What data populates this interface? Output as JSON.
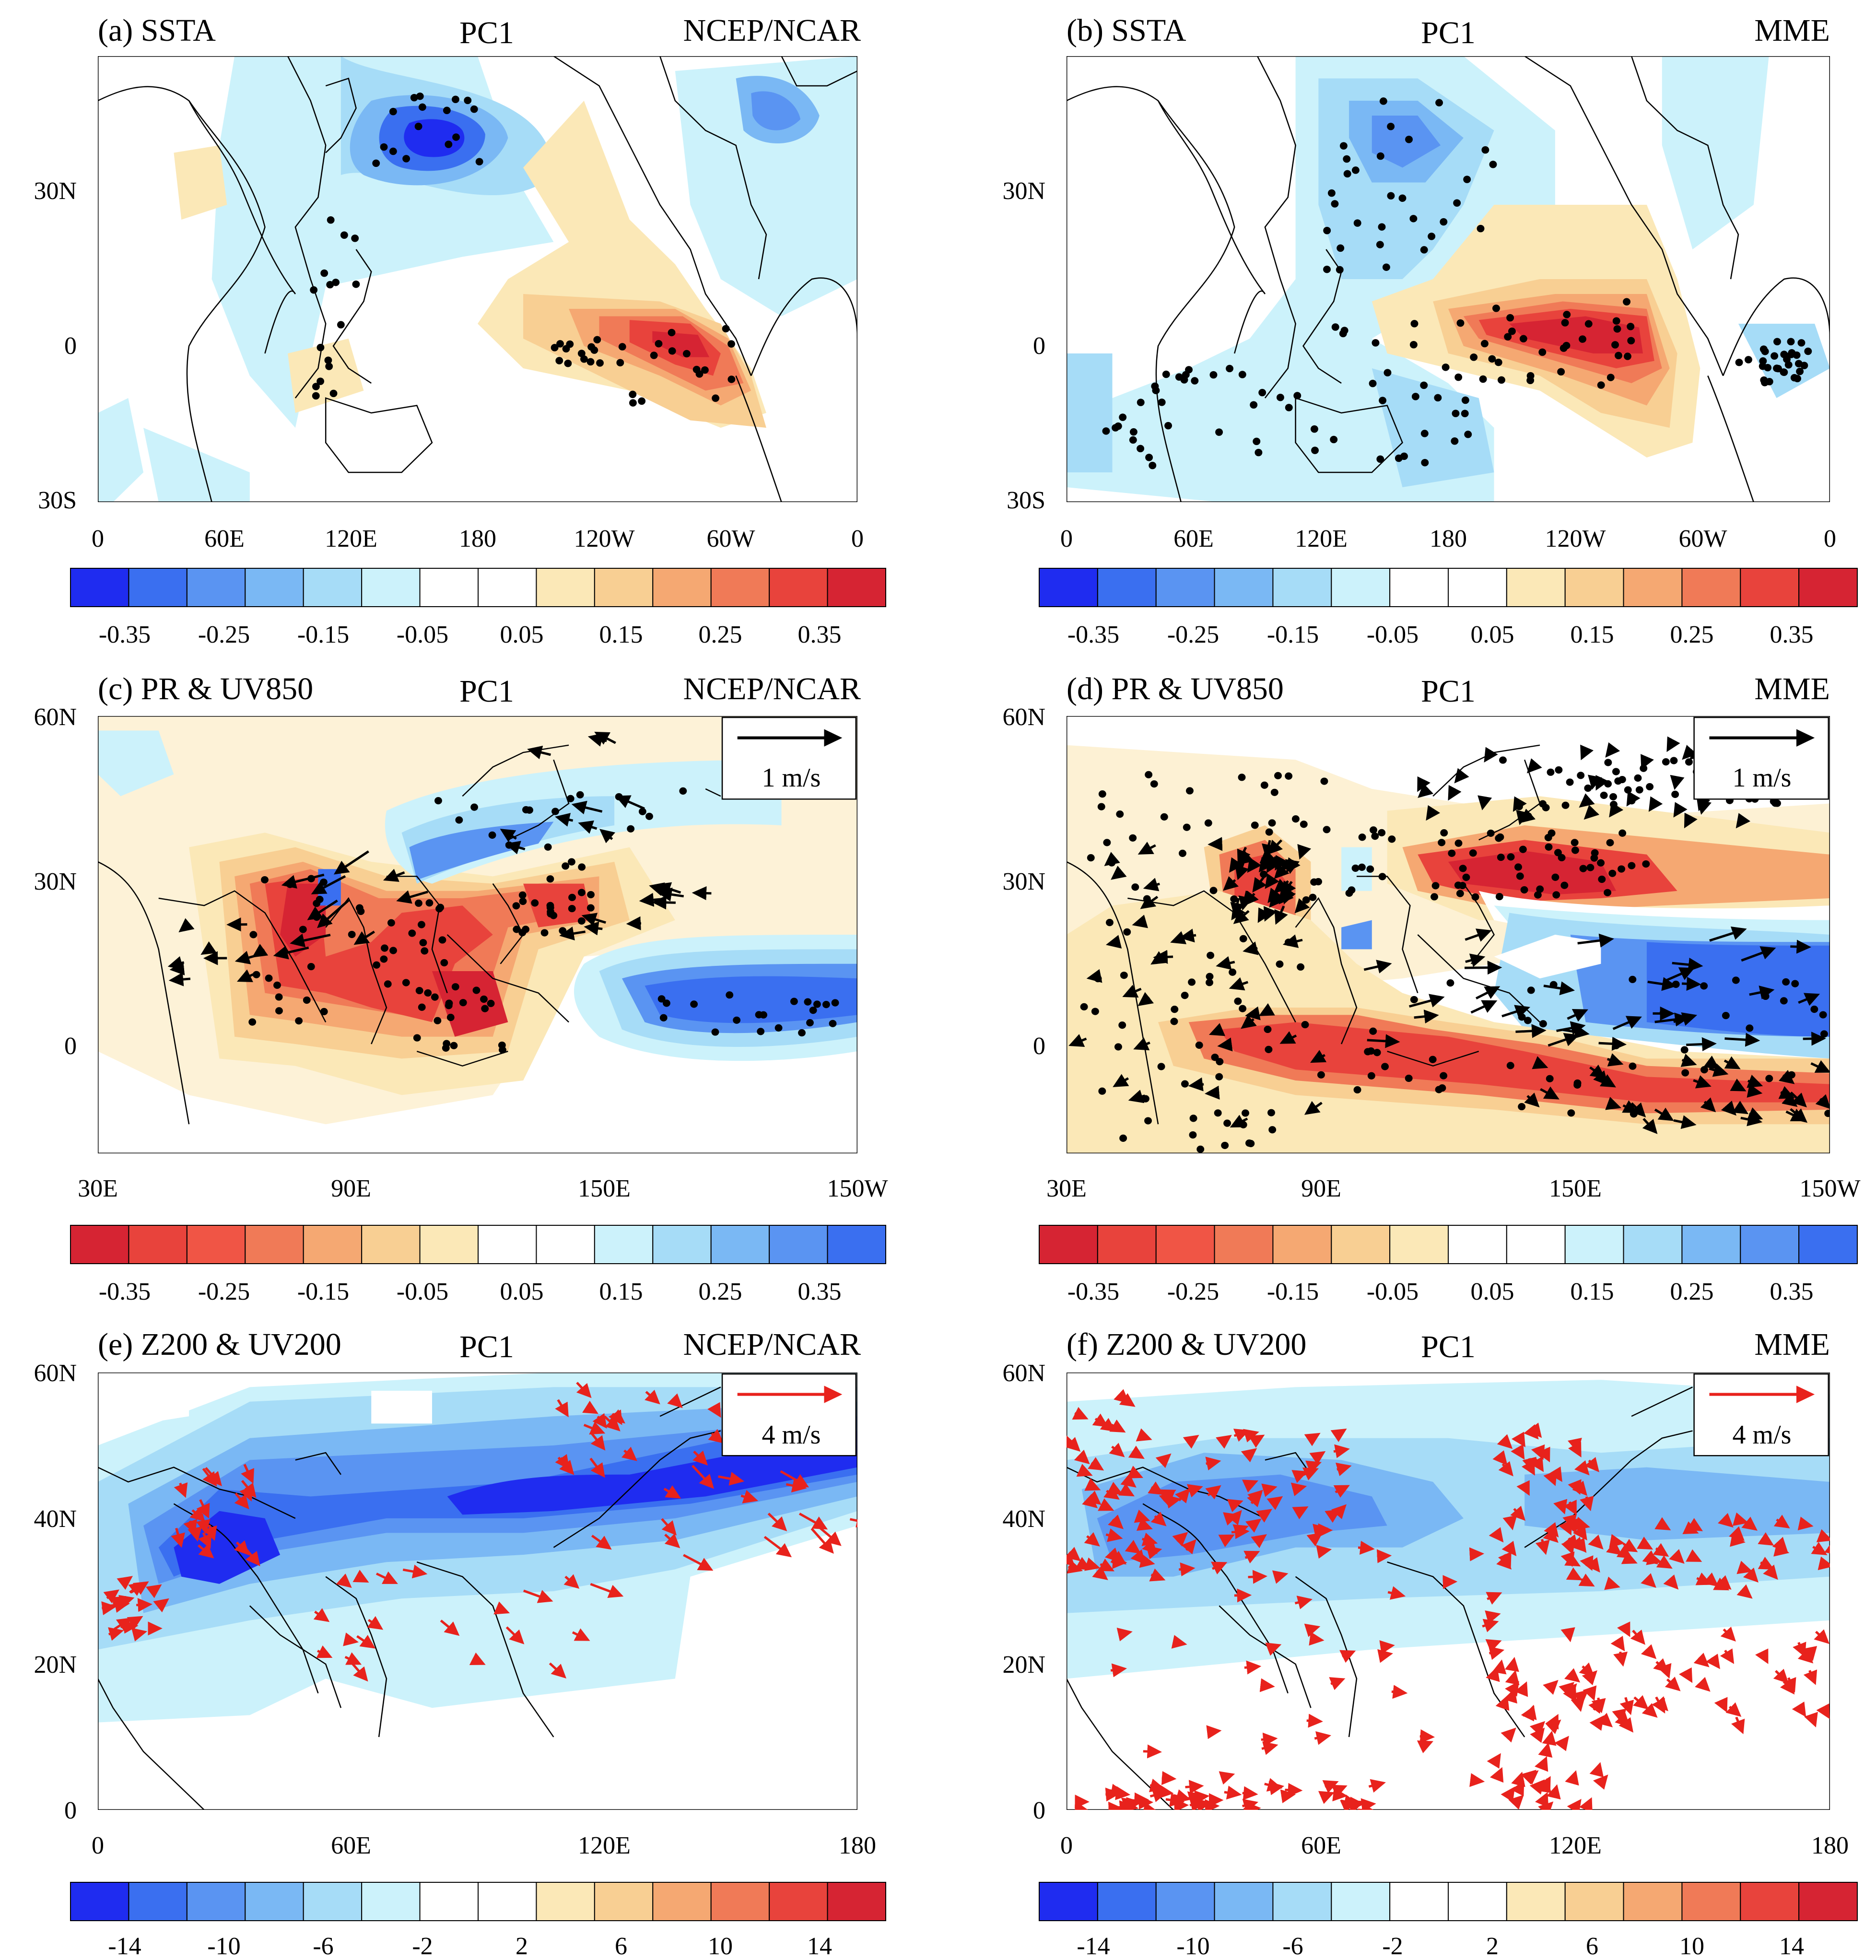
{
  "figure": {
    "panels": [
      {
        "id": "a",
        "label": "(a) SSTA",
        "center": "PC1",
        "source": "NCEP/NCAR",
        "x_ticks": [
          "0",
          "60E",
          "120E",
          "180",
          "120W",
          "60W",
          "0"
        ],
        "y_ticks": [
          "30N",
          "0",
          "30S"
        ],
        "colorbar": "cb_sst_redpos",
        "stipple_count": 62,
        "vectors": "none"
      },
      {
        "id": "b",
        "label": "(b) SSTA",
        "center": "PC1",
        "source": "MME",
        "x_ticks": [
          "0",
          "60E",
          "120E",
          "180",
          "120W",
          "60W",
          "0"
        ],
        "y_ticks": [
          "30N",
          "0",
          "30S"
        ],
        "colorbar": "cb_sst_redpos",
        "stipple_count": 150,
        "vectors": "none"
      },
      {
        "id": "c",
        "label": "(c) PR & UV850",
        "center": "PC1",
        "source": "NCEP/NCAR",
        "x_ticks": [
          "30E",
          "90E",
          "150E",
          "150W"
        ],
        "y_ticks": [
          "60N",
          "30N",
          "0"
        ],
        "colorbar": "cb_pr_redneg",
        "stipple_count": 120,
        "vectors": "black",
        "ref_vector_label": "1 m/s"
      },
      {
        "id": "d",
        "label": "(d) PR & UV850",
        "center": "PC1",
        "source": "MME",
        "x_ticks": [
          "30E",
          "90E",
          "150E",
          "150W"
        ],
        "y_ticks": [
          "60N",
          "30N",
          "0"
        ],
        "colorbar": "cb_pr_redneg",
        "stipple_count": 240,
        "vectors": "black",
        "ref_vector_label": "1 m/s"
      },
      {
        "id": "e",
        "label": "(e) Z200 & UV200",
        "center": "PC1",
        "source": "NCEP/NCAR",
        "x_ticks": [
          "0",
          "60E",
          "120E",
          "180"
        ],
        "y_ticks": [
          "60N",
          "40N",
          "20N",
          "0"
        ],
        "colorbar": "cb_z_bluenegs",
        "stipple_count": 0,
        "vectors": "red",
        "ref_vector_label": "4 m/s"
      },
      {
        "id": "f",
        "label": "(f) Z200 & UV200",
        "center": "PC1",
        "source": "MME",
        "x_ticks": [
          "0",
          "60E",
          "120E",
          "180"
        ],
        "y_ticks": [
          "60N",
          "40N",
          "20N",
          "0"
        ],
        "colorbar": "cb_z_bluenegs",
        "stipple_count": 0,
        "vectors": "red",
        "ref_vector_label": "4 m/s"
      }
    ],
    "colorbars": {
      "cb_sst_redpos": {
        "labels": [
          "-0.35",
          "-0.25",
          "-0.15",
          "-0.05",
          "0.05",
          "0.15",
          "0.25",
          "0.35"
        ],
        "colors": [
          "#1f2cf0",
          "#3a6ff0",
          "#5a94f2",
          "#7ab8f4",
          "#a6dcf7",
          "#ccf2fb",
          "#ffffff",
          "#ffffff",
          "#fbe8b7",
          "#f8cf93",
          "#f5a872",
          "#f07a57",
          "#e8433c",
          "#d62433"
        ]
      },
      "cb_pr_redneg": {
        "labels": [
          "-0.35",
          "-0.25",
          "-0.15",
          "-0.05",
          "0.05",
          "0.15",
          "0.25",
          "0.35"
        ],
        "colors": [
          "#d62433",
          "#e8433c",
          "#f05545",
          "#f07a57",
          "#f5a872",
          "#f8cf93",
          "#fbe8b7",
          "#ffffff",
          "#ffffff",
          "#ccf2fb",
          "#a6dcf7",
          "#7ab8f4",
          "#5a94f2",
          "#3a6ff0"
        ]
      },
      "cb_z_bluenegs": {
        "labels": [
          "-14",
          "-10",
          "-6",
          "-2",
          "2",
          "6",
          "10",
          "14"
        ],
        "colors": [
          "#1f2cf0",
          "#3a6ff0",
          "#5a94f2",
          "#7ab8f4",
          "#a6dcf7",
          "#ccf2fb",
          "#ffffff",
          "#ffffff",
          "#fbe8b7",
          "#f8cf93",
          "#f5a872",
          "#f07a57",
          "#e8433c",
          "#d62433"
        ]
      }
    }
  }
}
